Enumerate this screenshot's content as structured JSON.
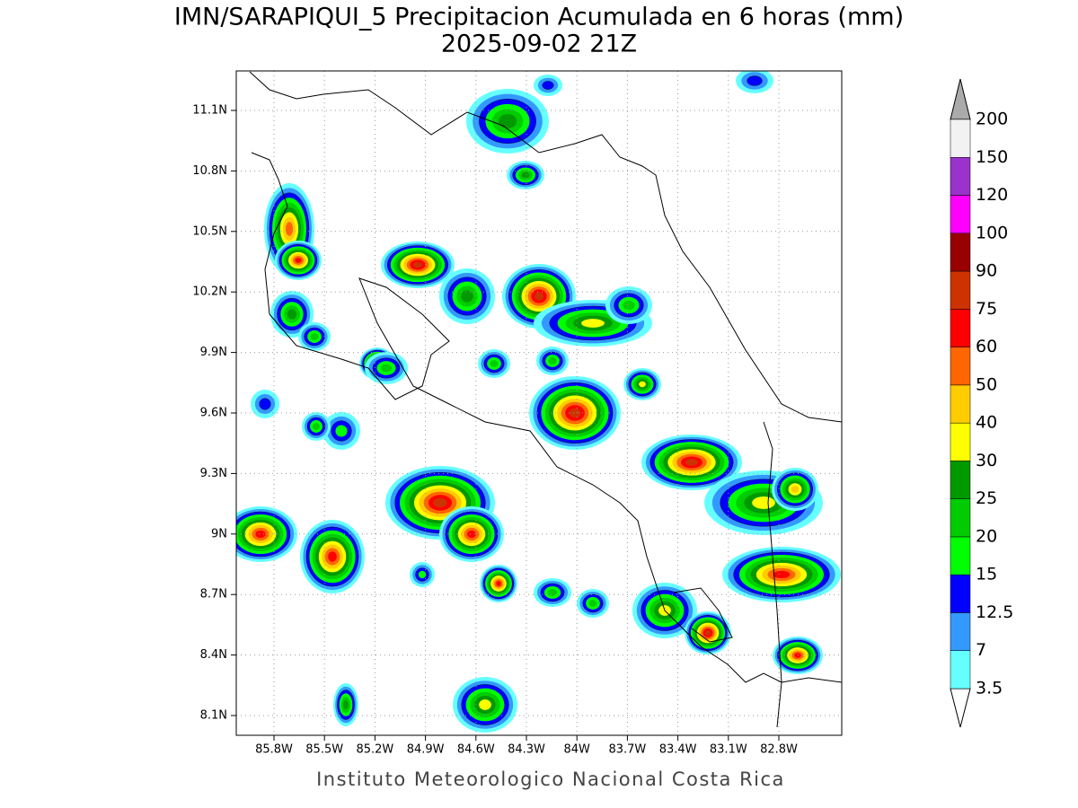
{
  "header": {
    "title": "IMN/SARAPIQUI_5 Precipitacion Acumulada en 6 horas (mm)",
    "subtitle": "2025-09-02 21Z"
  },
  "map": {
    "lat_labels": [
      "11.1N",
      "10.8N",
      "10.5N",
      "10.2N",
      "9.9N",
      "9.6N",
      "9.3N",
      "9N",
      "8.7N",
      "8.4N",
      "8.1N"
    ],
    "lon_labels": [
      "85.8W",
      "85.5W",
      "85.2W",
      "84.9W",
      "84.6W",
      "84.3W",
      "84W",
      "83.7W",
      "83.4W",
      "83.1W",
      "82.8W"
    ]
  },
  "colorbar": {
    "levels": [
      3.5,
      7,
      12.5,
      15,
      20,
      25,
      30,
      40,
      50,
      60,
      75,
      90,
      100,
      120,
      150,
      200
    ],
    "colors": [
      "#66ffff",
      "#3399ff",
      "#0000ff",
      "#00ff00",
      "#00cc00",
      "#009900",
      "#ffff00",
      "#ffcc00",
      "#ff6600",
      "#ff0000",
      "#cc3300",
      "#990000",
      "#ff00ff",
      "#9933cc",
      "#f2f2f2"
    ]
  },
  "footer": "Instituto Meteorologico Nacional Costa Rica"
}
